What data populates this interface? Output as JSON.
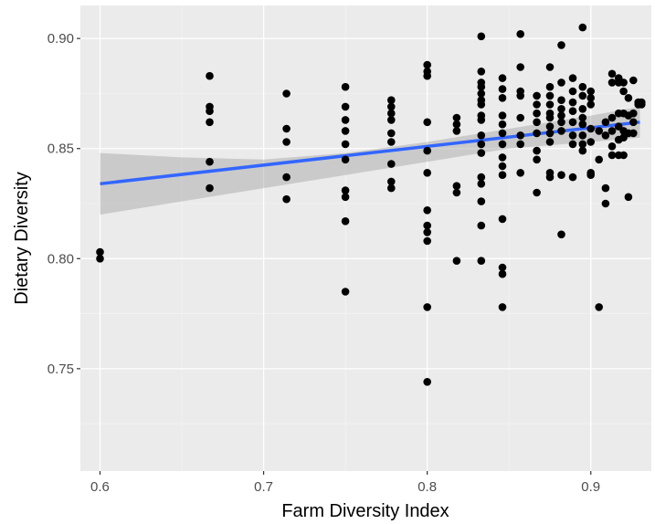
{
  "chart_data": {
    "type": "scatter",
    "xlabel": "Farm Diversity Index",
    "ylabel": "Dietary Diversity",
    "xlim": [
      0.588,
      0.937
    ],
    "ylim": [
      0.7035,
      0.915
    ],
    "x_ticks": [
      0.6,
      0.7,
      0.8,
      0.9
    ],
    "x_tick_labels": [
      "0.6",
      "0.7",
      "0.8",
      "0.9"
    ],
    "y_ticks": [
      0.75,
      0.8,
      0.85,
      0.9
    ],
    "y_tick_labels": [
      "0.75",
      "0.80",
      "0.85",
      "0.90"
    ],
    "grid": true,
    "legend": "none",
    "colors": {
      "panel_background": "#ebebeb",
      "grid_major": "#ffffff",
      "grid_minor": "#f5f5f5",
      "points": "#000000",
      "fit_line": "#3366ff",
      "confidence_band": "#999999"
    },
    "series": [
      {
        "type": "scatter",
        "points": [
          [
            0.6,
            0.8
          ],
          [
            0.6,
            0.803
          ],
          [
            0.667,
            0.832
          ],
          [
            0.667,
            0.844
          ],
          [
            0.667,
            0.862
          ],
          [
            0.667,
            0.867
          ],
          [
            0.667,
            0.869
          ],
          [
            0.667,
            0.883
          ],
          [
            0.714,
            0.827
          ],
          [
            0.714,
            0.837
          ],
          [
            0.714,
            0.853
          ],
          [
            0.714,
            0.859
          ],
          [
            0.714,
            0.875
          ],
          [
            0.75,
            0.785
          ],
          [
            0.75,
            0.817
          ],
          [
            0.75,
            0.828
          ],
          [
            0.75,
            0.831
          ],
          [
            0.75,
            0.845
          ],
          [
            0.75,
            0.852
          ],
          [
            0.75,
            0.858
          ],
          [
            0.75,
            0.863
          ],
          [
            0.75,
            0.869
          ],
          [
            0.75,
            0.878
          ],
          [
            0.778,
            0.832
          ],
          [
            0.778,
            0.835
          ],
          [
            0.778,
            0.843
          ],
          [
            0.778,
            0.853
          ],
          [
            0.778,
            0.857
          ],
          [
            0.778,
            0.863
          ],
          [
            0.778,
            0.866
          ],
          [
            0.778,
            0.869
          ],
          [
            0.778,
            0.872
          ],
          [
            0.8,
            0.744
          ],
          [
            0.8,
            0.778
          ],
          [
            0.8,
            0.808
          ],
          [
            0.8,
            0.812
          ],
          [
            0.8,
            0.815
          ],
          [
            0.8,
            0.822
          ],
          [
            0.8,
            0.839
          ],
          [
            0.8,
            0.849
          ],
          [
            0.8,
            0.862
          ],
          [
            0.8,
            0.883
          ],
          [
            0.8,
            0.885
          ],
          [
            0.8,
            0.888
          ],
          [
            0.818,
            0.799
          ],
          [
            0.818,
            0.83
          ],
          [
            0.818,
            0.833
          ],
          [
            0.818,
            0.858
          ],
          [
            0.818,
            0.861
          ],
          [
            0.818,
            0.864
          ],
          [
            0.833,
            0.799
          ],
          [
            0.833,
            0.815
          ],
          [
            0.833,
            0.826
          ],
          [
            0.833,
            0.834
          ],
          [
            0.833,
            0.837
          ],
          [
            0.833,
            0.848
          ],
          [
            0.833,
            0.852
          ],
          [
            0.833,
            0.856
          ],
          [
            0.833,
            0.863
          ],
          [
            0.833,
            0.865
          ],
          [
            0.833,
            0.87
          ],
          [
            0.833,
            0.872
          ],
          [
            0.833,
            0.875
          ],
          [
            0.833,
            0.878
          ],
          [
            0.833,
            0.88
          ],
          [
            0.833,
            0.885
          ],
          [
            0.833,
            0.901
          ],
          [
            0.846,
            0.778
          ],
          [
            0.846,
            0.793
          ],
          [
            0.846,
            0.796
          ],
          [
            0.846,
            0.818
          ],
          [
            0.846,
            0.838
          ],
          [
            0.846,
            0.842
          ],
          [
            0.846,
            0.846
          ],
          [
            0.846,
            0.852
          ],
          [
            0.846,
            0.857
          ],
          [
            0.846,
            0.861
          ],
          [
            0.846,
            0.865
          ],
          [
            0.846,
            0.873
          ],
          [
            0.846,
            0.877
          ],
          [
            0.846,
            0.882
          ],
          [
            0.857,
            0.839
          ],
          [
            0.857,
            0.852
          ],
          [
            0.857,
            0.856
          ],
          [
            0.857,
            0.864
          ],
          [
            0.857,
            0.874
          ],
          [
            0.857,
            0.876
          ],
          [
            0.857,
            0.887
          ],
          [
            0.857,
            0.902
          ],
          [
            0.867,
            0.83
          ],
          [
            0.867,
            0.845
          ],
          [
            0.867,
            0.849
          ],
          [
            0.867,
            0.857
          ],
          [
            0.867,
            0.862
          ],
          [
            0.867,
            0.866
          ],
          [
            0.867,
            0.87
          ],
          [
            0.867,
            0.874
          ],
          [
            0.875,
            0.837
          ],
          [
            0.875,
            0.839
          ],
          [
            0.875,
            0.853
          ],
          [
            0.875,
            0.857
          ],
          [
            0.875,
            0.86
          ],
          [
            0.875,
            0.864
          ],
          [
            0.875,
            0.866
          ],
          [
            0.875,
            0.87
          ],
          [
            0.875,
            0.874
          ],
          [
            0.875,
            0.878
          ],
          [
            0.875,
            0.887
          ],
          [
            0.882,
            0.811
          ],
          [
            0.882,
            0.838
          ],
          [
            0.882,
            0.858
          ],
          [
            0.882,
            0.862
          ],
          [
            0.882,
            0.865
          ],
          [
            0.882,
            0.868
          ],
          [
            0.882,
            0.872
          ],
          [
            0.882,
            0.88
          ],
          [
            0.882,
            0.897
          ],
          [
            0.889,
            0.837
          ],
          [
            0.889,
            0.852
          ],
          [
            0.889,
            0.856
          ],
          [
            0.889,
            0.862
          ],
          [
            0.889,
            0.867
          ],
          [
            0.889,
            0.871
          ],
          [
            0.889,
            0.876
          ],
          [
            0.889,
            0.882
          ],
          [
            0.895,
            0.849
          ],
          [
            0.895,
            0.852
          ],
          [
            0.895,
            0.856
          ],
          [
            0.895,
            0.861
          ],
          [
            0.895,
            0.864
          ],
          [
            0.895,
            0.868
          ],
          [
            0.895,
            0.874
          ],
          [
            0.895,
            0.878
          ],
          [
            0.895,
            0.905
          ],
          [
            0.9,
            0.838
          ],
          [
            0.9,
            0.839
          ],
          [
            0.9,
            0.853
          ],
          [
            0.9,
            0.859
          ],
          [
            0.9,
            0.87
          ],
          [
            0.9,
            0.873
          ],
          [
            0.9,
            0.876
          ],
          [
            0.905,
            0.778
          ],
          [
            0.905,
            0.845
          ],
          [
            0.905,
            0.858
          ],
          [
            0.909,
            0.825
          ],
          [
            0.909,
            0.832
          ],
          [
            0.909,
            0.856
          ],
          [
            0.909,
            0.862
          ],
          [
            0.913,
            0.847
          ],
          [
            0.913,
            0.851
          ],
          [
            0.913,
            0.858
          ],
          [
            0.913,
            0.864
          ],
          [
            0.913,
            0.88
          ],
          [
            0.913,
            0.884
          ],
          [
            0.917,
            0.847
          ],
          [
            0.917,
            0.854
          ],
          [
            0.917,
            0.86
          ],
          [
            0.917,
            0.866
          ],
          [
            0.917,
            0.88
          ],
          [
            0.917,
            0.882
          ],
          [
            0.92,
            0.847
          ],
          [
            0.92,
            0.855
          ],
          [
            0.92,
            0.858
          ],
          [
            0.92,
            0.866
          ],
          [
            0.92,
            0.876
          ],
          [
            0.92,
            0.88
          ],
          [
            0.923,
            0.828
          ],
          [
            0.923,
            0.857
          ],
          [
            0.923,
            0.865
          ],
          [
            0.923,
            0.873
          ],
          [
            0.926,
            0.857
          ],
          [
            0.926,
            0.862
          ],
          [
            0.926,
            0.866
          ],
          [
            0.926,
            0.881
          ],
          [
            0.929,
            0.87
          ],
          [
            0.929,
            0.871
          ],
          [
            0.931,
            0.87
          ],
          [
            0.931,
            0.871
          ]
        ]
      },
      {
        "type": "line",
        "x": [
          0.6,
          0.93
        ],
        "y": [
          0.834,
          0.862
        ]
      },
      {
        "type": "area",
        "x": [
          0.6,
          0.65,
          0.7,
          0.75,
          0.8,
          0.85,
          0.9,
          0.93
        ],
        "upper": [
          0.848,
          0.846,
          0.845,
          0.848,
          0.853,
          0.859,
          0.865,
          0.869
        ],
        "lower": [
          0.82,
          0.826,
          0.832,
          0.838,
          0.844,
          0.85,
          0.853,
          0.855
        ]
      }
    ]
  }
}
